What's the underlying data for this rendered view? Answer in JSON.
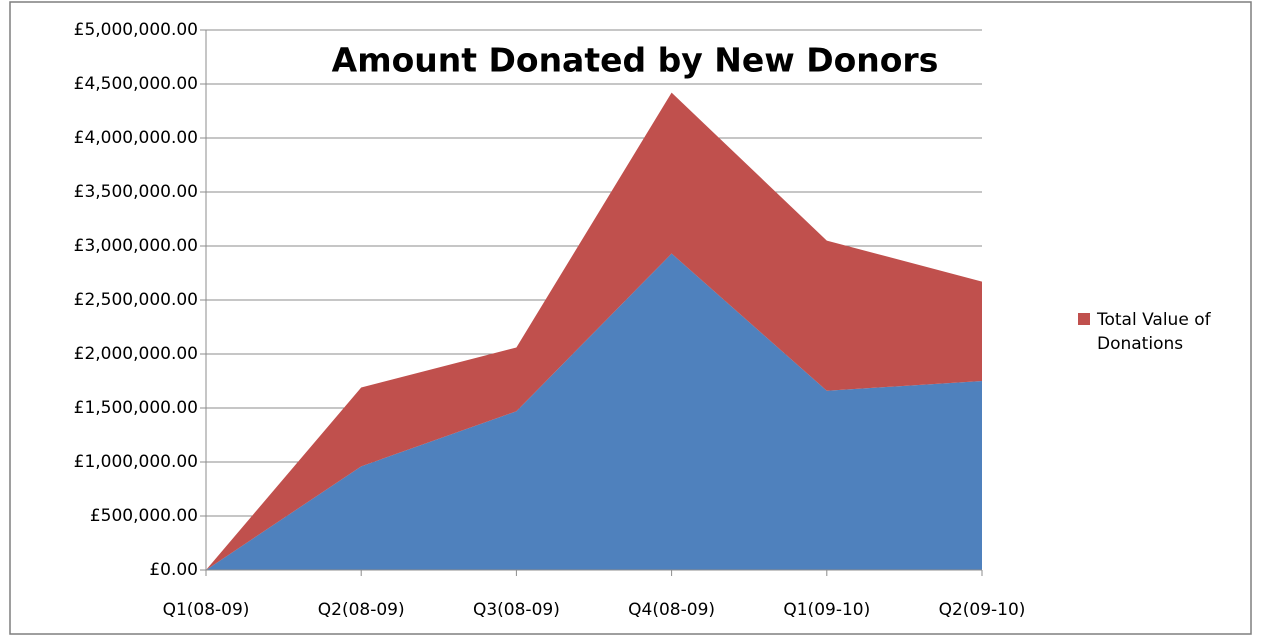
{
  "chart_data": {
    "type": "stacked_area",
    "title": "Amount Donated by New Donors",
    "categories": [
      "Q1(08-09)",
      "Q2(08-09)",
      "Q3(08-09)",
      "Q4(08-09)",
      "Q1(09-10)",
      "Q2(09-10)"
    ],
    "series": [
      {
        "color": "#4f81bd",
        "values": [
          0,
          960000,
          1470000,
          2930000,
          1660000,
          1750000
        ]
      },
      {
        "name": "Total Value of Donations",
        "color": "#c0504d",
        "values": [
          0,
          730000,
          590000,
          1490000,
          1390000,
          920000
        ]
      }
    ],
    "ylim": [
      0,
      5000000
    ],
    "yticks": [
      {
        "value": 0,
        "label": "£0.00"
      },
      {
        "value": 500000,
        "label": "£500,000.00"
      },
      {
        "value": 1000000,
        "label": "£1,000,000.00"
      },
      {
        "value": 1500000,
        "label": "£1,500,000.00"
      },
      {
        "value": 2000000,
        "label": "£2,000,000.00"
      },
      {
        "value": 2500000,
        "label": "£2,500,000.00"
      },
      {
        "value": 3000000,
        "label": "£3,000,000.00"
      },
      {
        "value": 3500000,
        "label": "£3,500,000.00"
      },
      {
        "value": 4000000,
        "label": "£4,000,000.00"
      },
      {
        "value": 4500000,
        "label": "£4,500,000.00"
      },
      {
        "value": 5000000,
        "label": "£5,000,000.00"
      }
    ],
    "grid": true,
    "legend": "right"
  }
}
